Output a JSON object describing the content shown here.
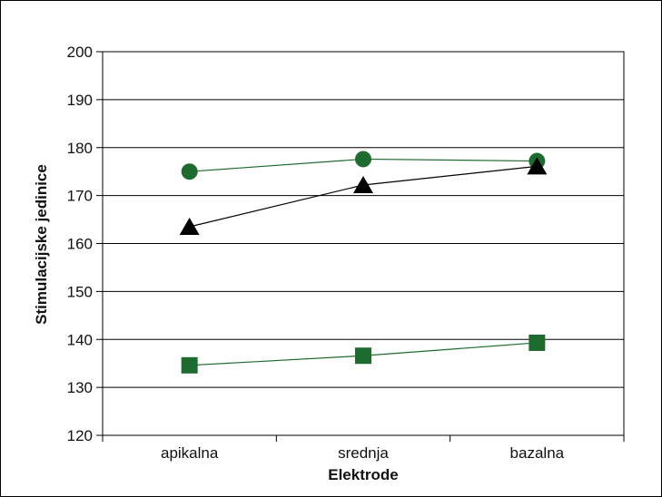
{
  "chart_data": {
    "type": "line",
    "title": "",
    "xlabel": "Elektrode",
    "ylabel": "Stimulacijske jedinice",
    "categories": [
      "apikalna",
      "srednja",
      "bazalna"
    ],
    "ylim": [
      120,
      200
    ],
    "yticks": [
      120,
      130,
      140,
      150,
      160,
      170,
      180,
      190,
      200
    ],
    "grid": true,
    "legend": "none",
    "series": [
      {
        "marker": "circle",
        "color": "#1e6b30",
        "values": [
          175,
          177.6,
          177.2
        ]
      },
      {
        "marker": "triangle",
        "color": "#000000",
        "values": [
          163.5,
          172.2,
          176.1
        ]
      },
      {
        "marker": "square",
        "color": "#1e6b30",
        "values": [
          134.6,
          136.6,
          139.3
        ]
      }
    ]
  }
}
